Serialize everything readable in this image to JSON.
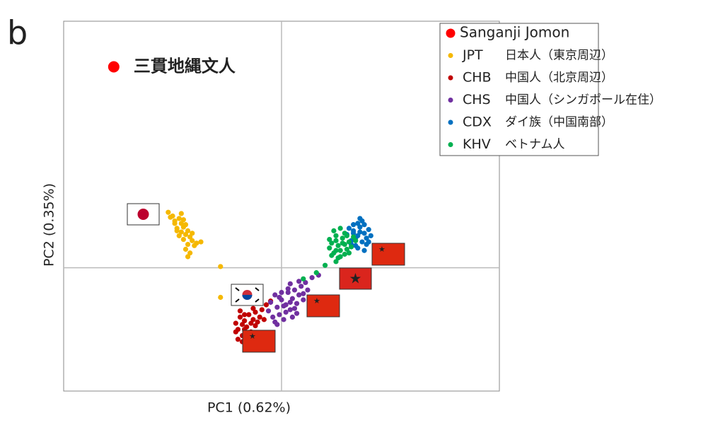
{
  "chart_data": {
    "type": "scatter",
    "panel_label": "b",
    "x_label": "PC1 (0.62%)",
    "y_label": "PC2 (0.35%)",
    "xlim": [
      -1,
      1
    ],
    "ylim": [
      -1,
      2
    ],
    "zero_lines": true,
    "legend": "top-right-outside",
    "series": [
      {
        "name": "Sanganji Jomon",
        "color": "#ff0000",
        "annotation": "三貫地縄文人",
        "x": [
          -0.77
        ],
        "y": [
          1.63
        ]
      },
      {
        "name": "JPT",
        "label": "日本人（東京周辺）",
        "color": "#f5b800",
        "x": [
          -0.52,
          -0.5,
          -0.49,
          -0.47,
          -0.46,
          -0.45,
          -0.44,
          -0.43,
          -0.48,
          -0.46,
          -0.44,
          -0.42,
          -0.41,
          -0.47,
          -0.45,
          -0.43,
          -0.4,
          -0.49,
          -0.51,
          -0.44,
          -0.42,
          -0.39,
          -0.46,
          -0.48,
          -0.41,
          -0.43,
          -0.37,
          -0.45,
          -0.28,
          -0.28
        ],
        "y": [
          0.45,
          0.42,
          0.38,
          0.4,
          0.36,
          0.33,
          0.35,
          0.3,
          0.32,
          0.29,
          0.27,
          0.25,
          0.22,
          0.26,
          0.23,
          0.19,
          0.18,
          0.36,
          0.41,
          0.15,
          0.12,
          0.2,
          0.44,
          0.3,
          0.28,
          0.09,
          0.21,
          0.39,
          0.01,
          -0.24
        ]
      },
      {
        "name": "CHB",
        "label": "中国人（北京周辺）",
        "color": "#c00000",
        "x": [
          -0.21,
          -0.2,
          -0.19,
          -0.18,
          -0.17,
          -0.16,
          -0.15,
          -0.14,
          -0.13,
          -0.12,
          -0.2,
          -0.18,
          -0.16,
          -0.14,
          -0.12,
          -0.1,
          -0.19,
          -0.17,
          -0.15,
          -0.13,
          -0.11,
          -0.21,
          -0.18,
          -0.16,
          -0.09,
          -0.07,
          -0.05,
          -0.08,
          -0.17,
          -0.14
        ],
        "y": [
          -0.45,
          -0.5,
          -0.4,
          -0.55,
          -0.43,
          -0.48,
          -0.38,
          -0.52,
          -0.42,
          -0.36,
          -0.58,
          -0.6,
          -0.53,
          -0.45,
          -0.47,
          -0.4,
          -0.35,
          -0.38,
          -0.56,
          -0.33,
          -0.44,
          -0.52,
          -0.46,
          -0.62,
          -0.34,
          -0.3,
          -0.27,
          -0.42,
          -0.5,
          -0.58
        ]
      },
      {
        "name": "CHS",
        "label": "中国人（シンガポール在住）",
        "color": "#7030a0",
        "x": [
          -0.06,
          -0.05,
          -0.04,
          -0.03,
          -0.02,
          -0.01,
          0.0,
          0.01,
          0.02,
          0.03,
          0.04,
          0.05,
          0.06,
          0.07,
          0.08,
          0.09,
          0.1,
          0.11,
          -0.03,
          0.0,
          0.02,
          0.04,
          0.06,
          -0.01,
          0.03,
          0.05,
          0.08,
          0.12,
          0.14,
          0.17,
          0.01,
          -0.02,
          0.07,
          0.04,
          0.1
        ],
        "y": [
          -0.35,
          -0.28,
          -0.4,
          -0.22,
          -0.32,
          -0.38,
          -0.26,
          -0.42,
          -0.3,
          -0.2,
          -0.34,
          -0.25,
          -0.18,
          -0.29,
          -0.22,
          -0.15,
          -0.26,
          -0.12,
          -0.44,
          -0.2,
          -0.36,
          -0.28,
          -0.33,
          -0.24,
          -0.17,
          -0.4,
          -0.11,
          -0.18,
          -0.08,
          -0.06,
          -0.31,
          -0.46,
          -0.37,
          -0.13,
          -0.21
        ]
      },
      {
        "name": "CDX",
        "label": "ダイ族（中国南部）",
        "color": "#0070c0",
        "x": [
          0.3,
          0.32,
          0.33,
          0.34,
          0.35,
          0.36,
          0.37,
          0.38,
          0.39,
          0.4,
          0.31,
          0.33,
          0.35,
          0.37,
          0.39,
          0.34,
          0.36,
          0.38,
          0.32,
          0.41,
          0.36,
          0.33,
          0.4,
          0.38,
          0.35
        ],
        "y": [
          0.27,
          0.22,
          0.3,
          0.18,
          0.26,
          0.33,
          0.21,
          0.28,
          0.24,
          0.31,
          0.32,
          0.35,
          0.16,
          0.38,
          0.19,
          0.24,
          0.29,
          0.35,
          0.19,
          0.26,
          0.4,
          0.28,
          0.21,
          0.14,
          0.36
        ]
      },
      {
        "name": "KHV",
        "label": "ベトナム人",
        "color": "#00b050",
        "x": [
          0.22,
          0.23,
          0.24,
          0.25,
          0.26,
          0.27,
          0.28,
          0.29,
          0.3,
          0.31,
          0.32,
          0.33,
          0.23,
          0.25,
          0.27,
          0.29,
          0.31,
          0.24,
          0.26,
          0.28,
          0.3,
          0.22,
          0.34,
          0.27,
          0.25,
          0.29,
          0.1,
          0.16,
          0.2,
          0.25
        ],
        "y": [
          0.16,
          0.2,
          0.12,
          0.22,
          0.18,
          0.14,
          0.24,
          0.19,
          0.15,
          0.21,
          0.17,
          0.25,
          0.1,
          0.26,
          0.09,
          0.28,
          0.12,
          0.3,
          0.08,
          0.2,
          0.26,
          0.23,
          0.22,
          0.32,
          0.14,
          0.11,
          -0.09,
          -0.04,
          0.02,
          0.05
        ]
      }
    ]
  }
}
